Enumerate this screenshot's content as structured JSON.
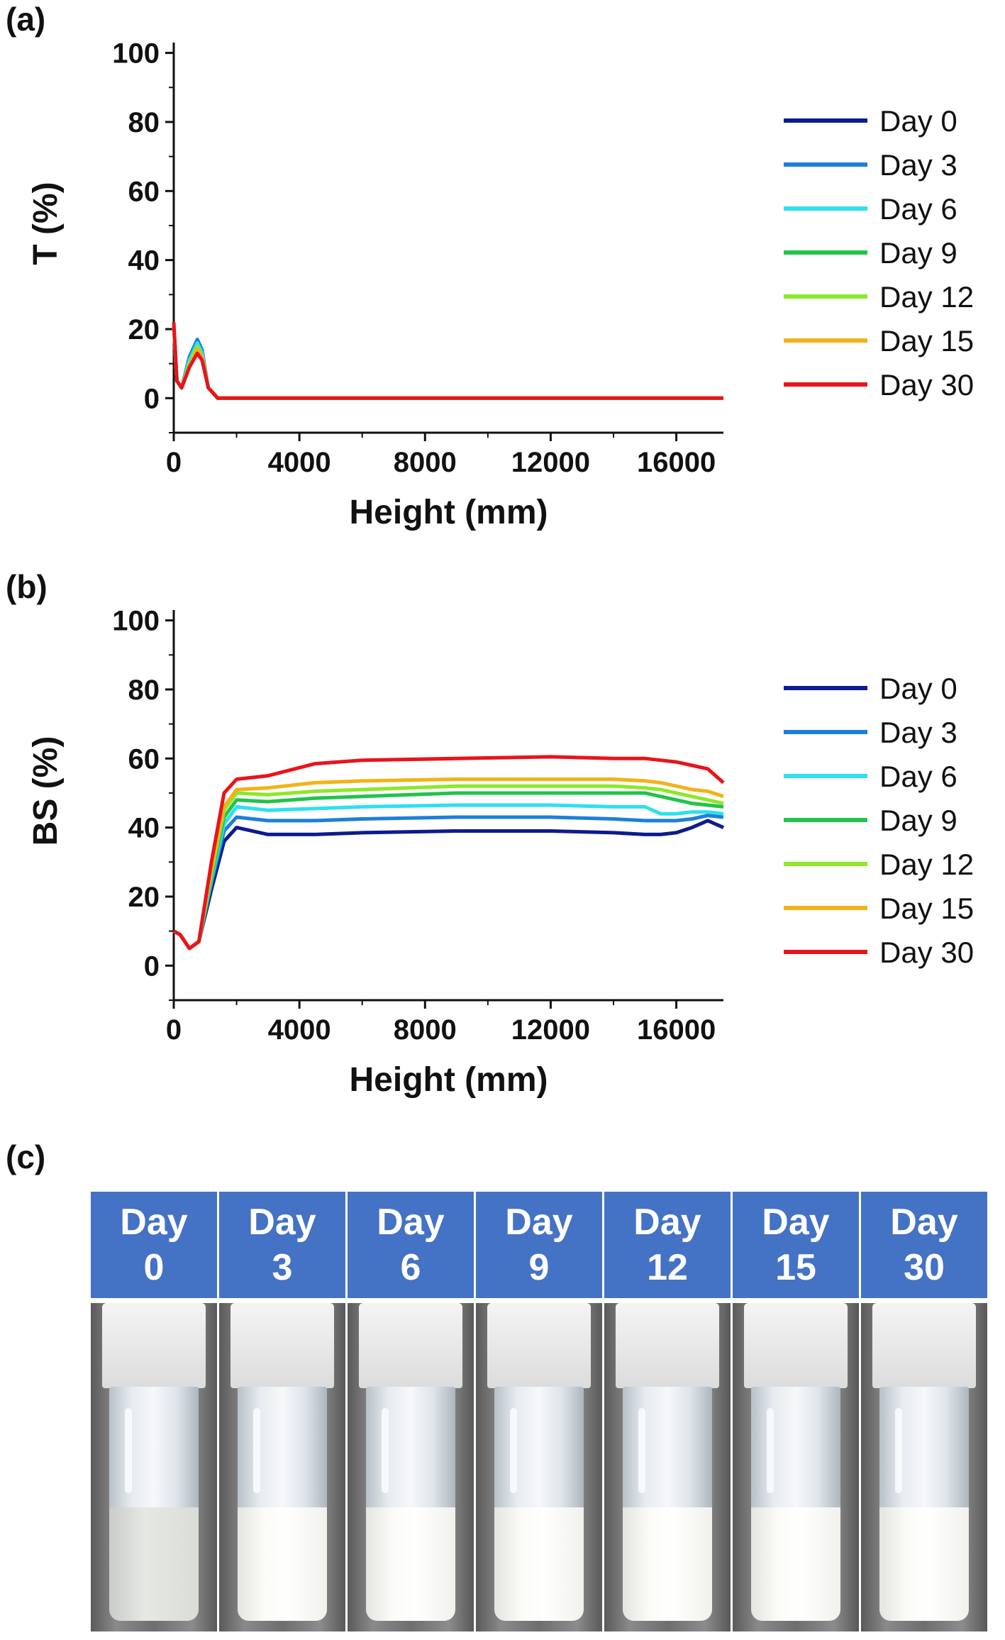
{
  "panels": {
    "a": "(a)",
    "b": "(b)",
    "c": "(c)"
  },
  "chart_data": [
    {
      "type": "line",
      "ylabel": "T (%)",
      "xlabel": "Height (mm)",
      "xlim": [
        0,
        17500
      ],
      "ylim": [
        -10,
        103
      ],
      "xticks": [
        0,
        4000,
        8000,
        12000,
        16000
      ],
      "yticks": [
        0,
        20,
        40,
        60,
        80,
        100
      ],
      "x": [
        0,
        100,
        250,
        500,
        750,
        900,
        1100,
        1400,
        2000,
        17500
      ],
      "series": [
        {
          "name": "Day 0",
          "color": "#0d1b8c",
          "values": [
            21,
            5,
            3,
            11,
            16,
            13,
            3,
            0,
            0,
            0
          ]
        },
        {
          "name": "Day 3",
          "color": "#1e7fd8",
          "values": [
            21,
            5,
            3,
            12,
            17,
            14,
            3,
            0,
            0,
            0
          ]
        },
        {
          "name": "Day 6",
          "color": "#2ee0f0",
          "values": [
            21,
            5,
            3,
            11,
            16,
            13,
            3,
            0,
            0,
            0
          ]
        },
        {
          "name": "Day 9",
          "color": "#22c44a",
          "values": [
            21,
            5,
            3,
            10,
            15,
            12,
            3,
            0,
            0,
            0
          ]
        },
        {
          "name": "Day 12",
          "color": "#8ee82a",
          "values": [
            21,
            5,
            3,
            10,
            15,
            12,
            3,
            0,
            0,
            0
          ]
        },
        {
          "name": "Day 15",
          "color": "#f2b21a",
          "values": [
            21,
            5,
            3,
            9,
            14,
            12,
            3,
            0,
            0,
            0
          ]
        },
        {
          "name": "Day 30",
          "color": "#e8141c",
          "values": [
            22,
            5,
            3,
            9,
            13,
            11,
            3,
            0,
            0,
            0
          ]
        }
      ],
      "legend": "right"
    },
    {
      "type": "line",
      "ylabel": "BS (%)",
      "xlabel": "Height (mm)",
      "xlim": [
        0,
        17500
      ],
      "ylim": [
        -10,
        103
      ],
      "xticks": [
        0,
        4000,
        8000,
        12000,
        16000
      ],
      "yticks": [
        0,
        20,
        40,
        60,
        80,
        100
      ],
      "x": [
        0,
        200,
        500,
        800,
        1200,
        1600,
        2000,
        3000,
        4500,
        6000,
        9000,
        12000,
        14000,
        15000,
        15500,
        16000,
        16500,
        17000,
        17500
      ],
      "series": [
        {
          "name": "Day 0",
          "color": "#0d1b8c",
          "values": [
            10,
            9,
            5,
            7,
            22,
            36,
            40,
            38,
            38,
            38.5,
            39,
            39,
            38.5,
            38,
            38,
            38.5,
            40,
            42,
            40
          ]
        },
        {
          "name": "Day 3",
          "color": "#1e7fd8",
          "values": [
            10,
            9,
            5,
            7,
            24,
            39,
            43,
            42,
            42,
            42.5,
            43,
            43,
            42.5,
            42,
            42,
            42,
            42.5,
            43.5,
            43
          ]
        },
        {
          "name": "Day 6",
          "color": "#2ee0f0",
          "values": [
            10,
            9,
            5,
            7,
            25,
            41,
            46,
            45,
            45.5,
            46,
            46.5,
            46.5,
            46,
            46,
            44,
            44,
            44.5,
            44.5,
            44
          ]
        },
        {
          "name": "Day 9",
          "color": "#22c44a",
          "values": [
            10,
            9,
            5,
            7,
            26,
            43,
            48,
            47.5,
            48.5,
            49,
            50,
            50,
            50,
            50,
            49,
            48,
            47,
            46.5,
            46
          ]
        },
        {
          "name": "Day 12",
          "color": "#8ee82a",
          "values": [
            10,
            9,
            5,
            7,
            27,
            45,
            50,
            49.5,
            50.5,
            51,
            52,
            52,
            52,
            51.5,
            51,
            50,
            49,
            48,
            47
          ]
        },
        {
          "name": "Day 15",
          "color": "#f2b21a",
          "values": [
            10,
            9,
            5,
            7,
            28,
            46,
            51,
            51.5,
            53,
            53.5,
            54,
            54,
            54,
            53.5,
            53,
            52,
            51,
            50.5,
            49
          ]
        },
        {
          "name": "Day 30",
          "color": "#e8141c",
          "values": [
            10,
            9,
            5,
            7,
            30,
            50,
            54,
            55,
            58.5,
            59.5,
            60,
            60.5,
            60,
            60,
            59.5,
            59,
            58,
            57,
            53
          ]
        }
      ],
      "legend": "right"
    }
  ],
  "photos": {
    "headers": [
      {
        "line1": "Day",
        "line2": "0"
      },
      {
        "line1": "Day",
        "line2": "3"
      },
      {
        "line1": "Day",
        "line2": "6"
      },
      {
        "line1": "Day",
        "line2": "9"
      },
      {
        "line1": "Day",
        "line2": "12"
      },
      {
        "line1": "Day",
        "line2": "15"
      },
      {
        "line1": "Day",
        "line2": "30"
      }
    ],
    "header_color": "#4472c4"
  }
}
